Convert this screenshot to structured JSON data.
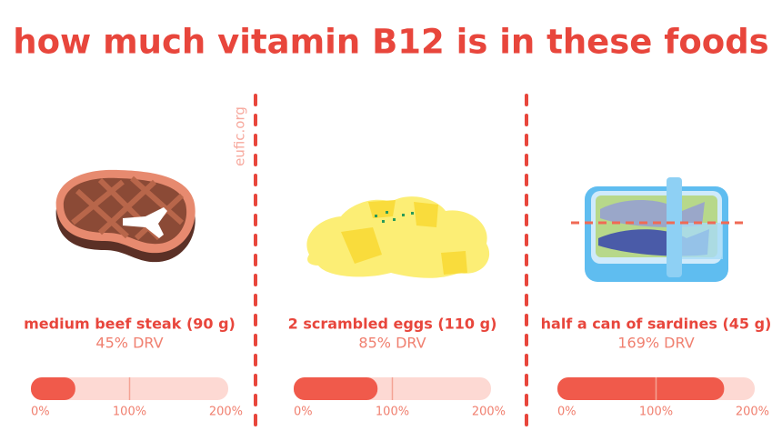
{
  "title": "how much vitamin B12 is in these foods",
  "source": "eufic.org",
  "chart_data": [
    {
      "type": "bar",
      "categories": [
        "medium beef steak (90 g)"
      ],
      "values": [
        45
      ],
      "value_labels": [
        "45% DRV"
      ],
      "color": "#f05a4b",
      "track_color": "#fdd9d3",
      "xlim": [
        0,
        200
      ],
      "xticks": [
        {
          "value": 0,
          "label": "0%"
        },
        {
          "value": 100,
          "label": "100%"
        },
        {
          "value": 200,
          "label": "200%"
        }
      ]
    },
    {
      "type": "bar",
      "categories": [
        "2 scrambled eggs (110 g)"
      ],
      "values": [
        85
      ],
      "value_labels": [
        "85% DRV"
      ],
      "color": "#f05a4b",
      "track_color": "#fdd9d3",
      "xlim": [
        0,
        200
      ],
      "xticks": [
        {
          "value": 0,
          "label": "0%"
        },
        {
          "value": 100,
          "label": "100%"
        },
        {
          "value": 200,
          "label": "200%"
        }
      ]
    },
    {
      "type": "bar",
      "categories": [
        "half a can of sardines (45 g)"
      ],
      "values": [
        169
      ],
      "value_labels": [
        "169% DRV"
      ],
      "color": "#f05a4b",
      "track_color": "#fdd9d3",
      "xlim": [
        0,
        200
      ],
      "xticks": [
        {
          "value": 0,
          "label": "0%"
        },
        {
          "value": 100,
          "label": "100%"
        },
        {
          "value": 200,
          "label": "200%"
        }
      ]
    }
  ]
}
